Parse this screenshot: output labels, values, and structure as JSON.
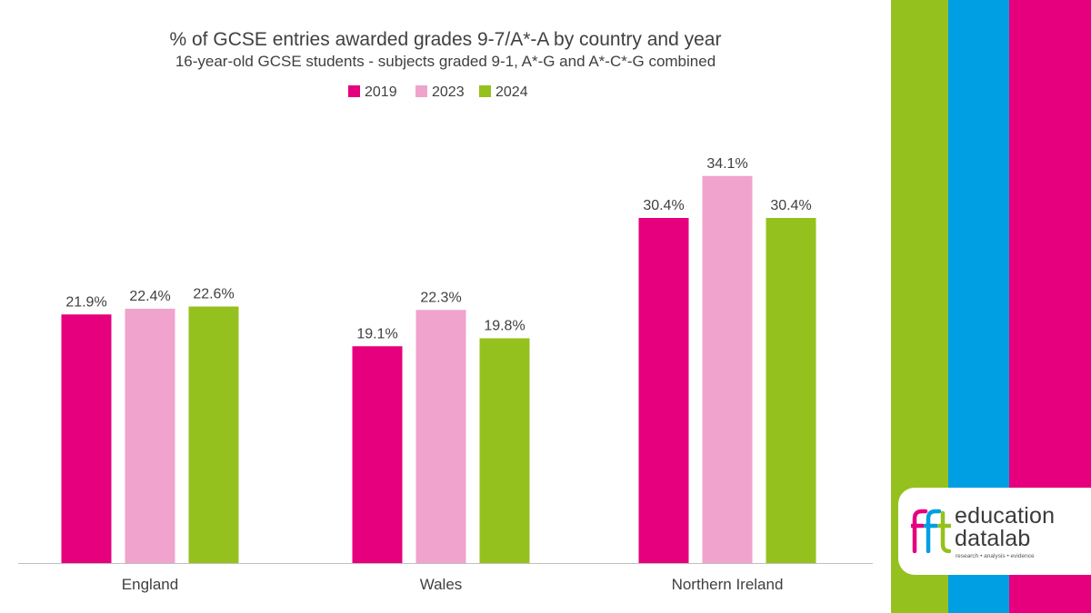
{
  "chart_data": {
    "type": "bar",
    "title": "% of GCSE entries awarded grades 9-7/A*-A by country and year",
    "subtitle": "16-year-old GCSE students - subjects graded 9-1, A*-G and A*-C*-G combined",
    "categories": [
      "England",
      "Wales",
      "Northern Ireland"
    ],
    "series": [
      {
        "name": "2019",
        "color": "#e6007e",
        "values": [
          21.9,
          19.1,
          30.4
        ],
        "labels": [
          "21.9%",
          "19.1%",
          "30.4%"
        ]
      },
      {
        "name": "2023",
        "color": "#f0a3cc",
        "values": [
          22.4,
          22.3,
          34.1
        ],
        "labels": [
          "22.4%",
          "22.3%",
          "34.1%"
        ]
      },
      {
        "name": "2024",
        "color": "#95c11f",
        "values": [
          22.6,
          19.8,
          30.4
        ],
        "labels": [
          "22.6%",
          "19.8%",
          "30.4%"
        ]
      }
    ],
    "ylim": [
      0,
      40
    ],
    "xlabel": "",
    "ylabel": "",
    "legend_position": "top-center",
    "grid": false
  },
  "branding": {
    "logo_line1": "education",
    "logo_line2": "datalab",
    "tagline": "research • analysis • evidence",
    "stripe_colors": [
      "#95c11f",
      "#009fe3",
      "#e6007e"
    ]
  }
}
